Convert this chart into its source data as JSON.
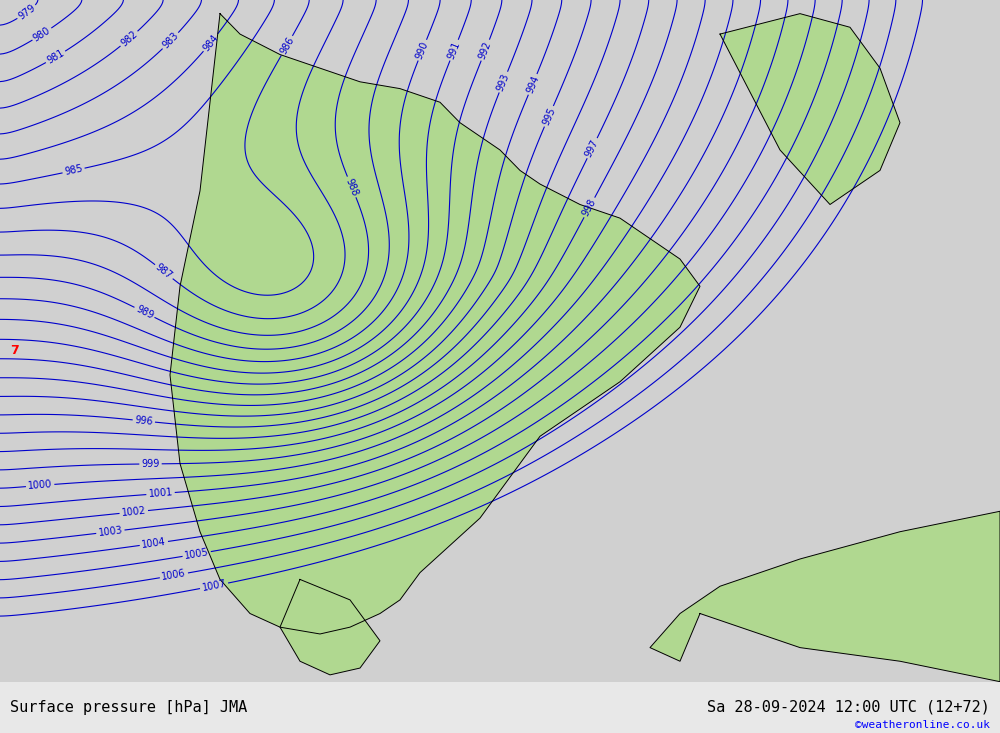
{
  "title_left": "Surface pressure [hPa] JMA",
  "title_right": "Sa 28-09-2024 12:00 UTC (12+72)",
  "watermark": "©weatheronline.co.uk",
  "bg_color": "#e8e8e8",
  "land_color": "#b0d890",
  "sea_color": "#d0d0d0",
  "contour_color_blue": "#0000cc",
  "contour_color_red": "#cc0000",
  "contour_color_black": "#000000",
  "pressure_min": 975,
  "pressure_max": 1007,
  "label_fontsize": 7,
  "title_fontsize": 11,
  "watermark_fontsize": 8
}
